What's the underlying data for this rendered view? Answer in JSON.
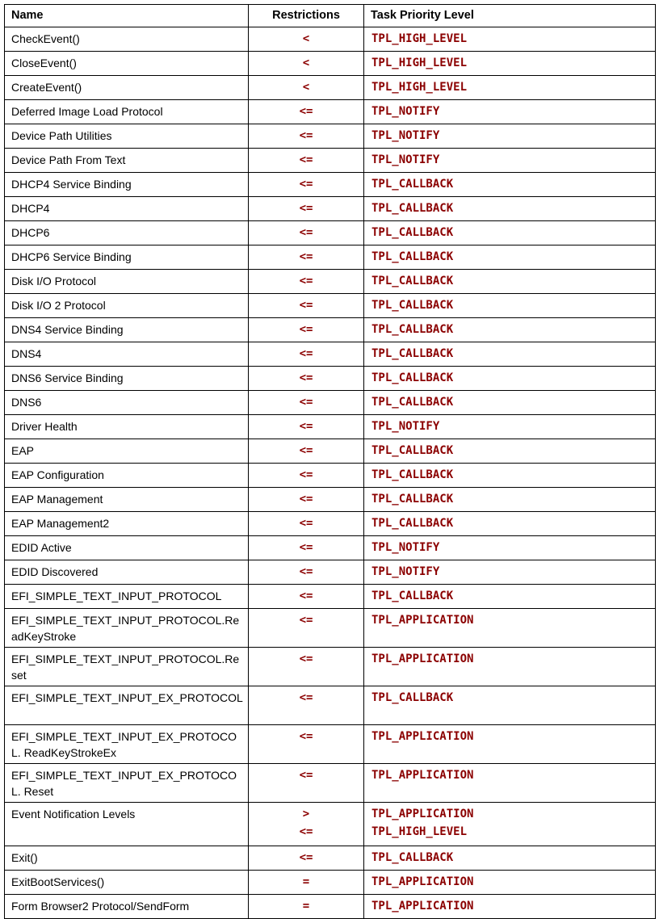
{
  "table": {
    "headers": {
      "name": "Name",
      "restrictions": "Restrictions",
      "level": "Task Priority Level"
    },
    "rows": [
      {
        "name": "CheckEvent()",
        "restrictions": [
          "<"
        ],
        "levels": [
          "TPL_HIGH_LEVEL"
        ]
      },
      {
        "name": "CloseEvent()",
        "restrictions": [
          "<"
        ],
        "levels": [
          "TPL_HIGH_LEVEL"
        ]
      },
      {
        "name": "CreateEvent()",
        "restrictions": [
          "<"
        ],
        "levels": [
          "TPL_HIGH_LEVEL"
        ]
      },
      {
        "name": "Deferred Image Load Protocol",
        "restrictions": [
          "<="
        ],
        "levels": [
          "TPL_NOTIFY"
        ]
      },
      {
        "name": "Device Path Utilities",
        "restrictions": [
          "<="
        ],
        "levels": [
          "TPL_NOTIFY"
        ]
      },
      {
        "name": "Device Path From Text",
        "restrictions": [
          "<="
        ],
        "levels": [
          "TPL_NOTIFY"
        ]
      },
      {
        "name": "DHCP4 Service Binding",
        "restrictions": [
          "<="
        ],
        "levels": [
          "TPL_CALLBACK"
        ]
      },
      {
        "name": "DHCP4",
        "restrictions": [
          "<="
        ],
        "levels": [
          "TPL_CALLBACK"
        ]
      },
      {
        "name": "DHCP6",
        "restrictions": [
          "<="
        ],
        "levels": [
          "TPL_CALLBACK"
        ]
      },
      {
        "name": "DHCP6 Service Binding",
        "restrictions": [
          "<="
        ],
        "levels": [
          "TPL_CALLBACK"
        ]
      },
      {
        "name": "Disk I/O Protocol",
        "restrictions": [
          "<="
        ],
        "levels": [
          "TPL_CALLBACK"
        ]
      },
      {
        "name": "Disk I/O 2 Protocol",
        "restrictions": [
          "<="
        ],
        "levels": [
          "TPL_CALLBACK"
        ]
      },
      {
        "name": "DNS4 Service Binding",
        "restrictions": [
          "<="
        ],
        "levels": [
          "TPL_CALLBACK"
        ]
      },
      {
        "name": "DNS4",
        "restrictions": [
          "<="
        ],
        "levels": [
          "TPL_CALLBACK"
        ]
      },
      {
        "name": "DNS6 Service Binding",
        "restrictions": [
          "<="
        ],
        "levels": [
          "TPL_CALLBACK"
        ]
      },
      {
        "name": "DNS6",
        "restrictions": [
          "<="
        ],
        "levels": [
          "TPL_CALLBACK"
        ]
      },
      {
        "name": "Driver Health",
        "restrictions": [
          "<="
        ],
        "levels": [
          "TPL_NOTIFY"
        ]
      },
      {
        "name": "EAP",
        "restrictions": [
          "<="
        ],
        "levels": [
          "TPL_CALLBACK"
        ]
      },
      {
        "name": "EAP Configuration",
        "restrictions": [
          "<="
        ],
        "levels": [
          "TPL_CALLBACK"
        ]
      },
      {
        "name": "EAP Management",
        "restrictions": [
          "<="
        ],
        "levels": [
          "TPL_CALLBACK"
        ]
      },
      {
        "name": "EAP Management2",
        "restrictions": [
          "<="
        ],
        "levels": [
          "TPL_CALLBACK"
        ]
      },
      {
        "name": "EDID Active",
        "restrictions": [
          "<="
        ],
        "levels": [
          "TPL_NOTIFY"
        ]
      },
      {
        "name": "EDID Discovered",
        "restrictions": [
          "<="
        ],
        "levels": [
          "TPL_NOTIFY"
        ]
      },
      {
        "name": "EFI_SIMPLE_TEXT_INPUT_PROTOCOL",
        "restrictions": [
          "<="
        ],
        "levels": [
          "TPL_CALLBACK"
        ]
      },
      {
        "name": "EFI_SIMPLE_TEXT_INPUT_PROTOCOL.ReadKeyStroke",
        "restrictions": [
          "<="
        ],
        "levels": [
          "TPL_APPLICATION"
        ]
      },
      {
        "name": "EFI_SIMPLE_TEXT_INPUT_PROTOCOL.Reset",
        "restrictions": [
          "<="
        ],
        "levels": [
          "TPL_APPLICATION"
        ]
      },
      {
        "name": "EFI_SIMPLE_TEXT_INPUT_EX_PROTOCOL",
        "restrictions": [
          "<="
        ],
        "levels": [
          "TPL_CALLBACK"
        ]
      },
      {
        "name": "EFI_SIMPLE_TEXT_INPUT_EX_PROTOCOL. ReadKeyStrokeEx",
        "restrictions": [
          "<="
        ],
        "levels": [
          "TPL_APPLICATION"
        ]
      },
      {
        "name": "EFI_SIMPLE_TEXT_INPUT_EX_PROTOCOL. Reset",
        "restrictions": [
          "<="
        ],
        "levels": [
          "TPL_APPLICATION"
        ]
      },
      {
        "name": "Event Notification Levels",
        "restrictions": [
          ">",
          "<="
        ],
        "levels": [
          "TPL_APPLICATION",
          "TPL_HIGH_LEVEL"
        ]
      },
      {
        "name": "Exit()",
        "restrictions": [
          "<="
        ],
        "levels": [
          "TPL_CALLBACK"
        ]
      },
      {
        "name": "ExitBootServices()",
        "restrictions": [
          "="
        ],
        "levels": [
          "TPL_APPLICATION"
        ]
      },
      {
        "name": "Form Browser2 Protocol/SendForm",
        "restrictions": [
          "="
        ],
        "levels": [
          "TPL_APPLICATION"
        ]
      }
    ]
  },
  "colors": {
    "code_text": "#8b0000",
    "border": "#000000"
  }
}
